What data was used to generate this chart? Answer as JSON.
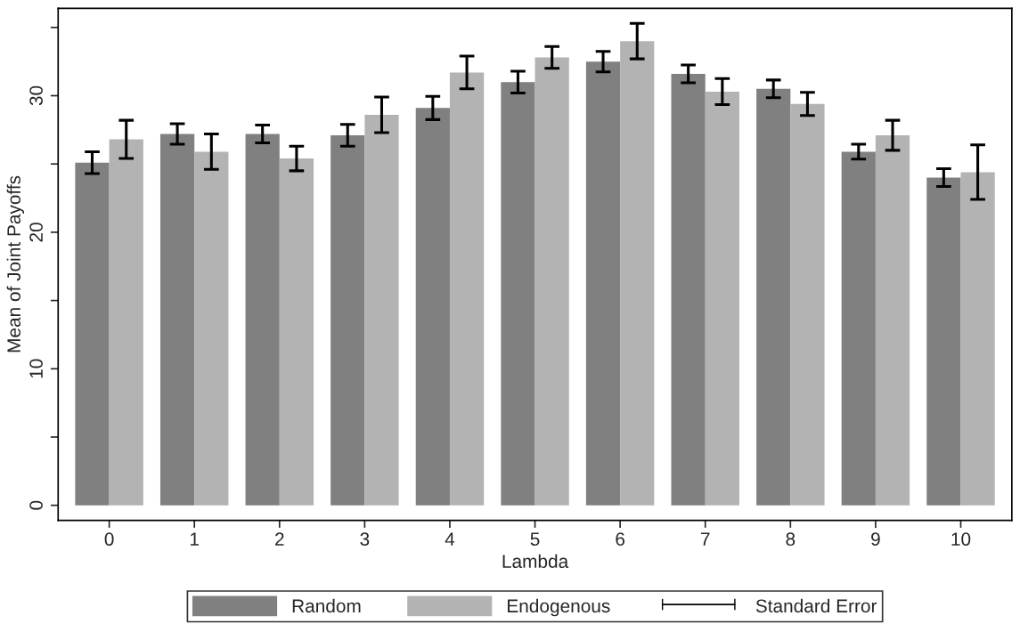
{
  "chart_data": {
    "type": "bar",
    "xlabel": "Lambda",
    "ylabel": "Mean of Joint Payoffs",
    "categories": [
      "0",
      "1",
      "2",
      "3",
      "4",
      "5",
      "6",
      "7",
      "8",
      "9",
      "10"
    ],
    "series": [
      {
        "name": "Random",
        "color": "#808080",
        "values": [
          25.1,
          27.2,
          27.2,
          27.1,
          29.1,
          31.0,
          32.5,
          31.6,
          30.5,
          25.9,
          24.0
        ],
        "errors": [
          0.8,
          0.75,
          0.65,
          0.8,
          0.85,
          0.8,
          0.75,
          0.65,
          0.65,
          0.55,
          0.65
        ]
      },
      {
        "name": "Endogenous",
        "color": "#b3b3b3",
        "values": [
          26.8,
          25.9,
          25.4,
          28.6,
          31.7,
          32.8,
          34.0,
          30.3,
          29.4,
          27.1,
          24.4
        ],
        "errors": [
          1.4,
          1.3,
          0.9,
          1.3,
          1.2,
          0.8,
          1.3,
          0.95,
          0.85,
          1.1,
          2.0
        ]
      }
    ],
    "annotations": [
      "Standard Error"
    ],
    "ylim": [
      -1.1,
      36.4
    ],
    "yticks": [
      0,
      {
        "value": 5,
        "label": null
      },
      10,
      {
        "value": 15,
        "label": null
      },
      20,
      {
        "value": 25,
        "label": null
      },
      30,
      {
        "value": 35,
        "label": null
      }
    ],
    "grid": false,
    "legend": "bottom"
  }
}
